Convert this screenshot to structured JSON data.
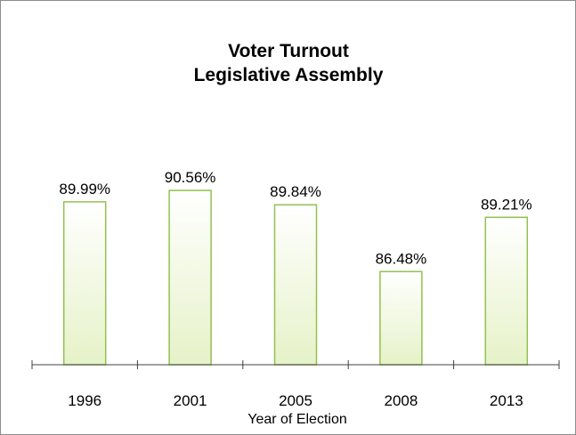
{
  "chart_data": {
    "type": "bar",
    "title": "Voter Turnout",
    "subtitle": "Legislative Assembly",
    "categories": [
      "1996",
      "2001",
      "2005",
      "2008",
      "2013"
    ],
    "values": [
      89.99,
      90.56,
      89.84,
      86.48,
      89.21
    ],
    "data_labels": [
      "89.99%",
      "90.56%",
      "89.84%",
      "86.48%",
      "89.21%"
    ],
    "xlabel": "Year of Election",
    "ylabel": "",
    "ylim": [
      81.8,
      100
    ],
    "grid": false,
    "legend": "none",
    "colors": {
      "bar_fill_top": "#ffffff",
      "bar_fill_bottom": "#e6f2c8",
      "bar_stroke": "#92c14f",
      "axis": "#404040",
      "frame": "#8c8c8c"
    }
  }
}
